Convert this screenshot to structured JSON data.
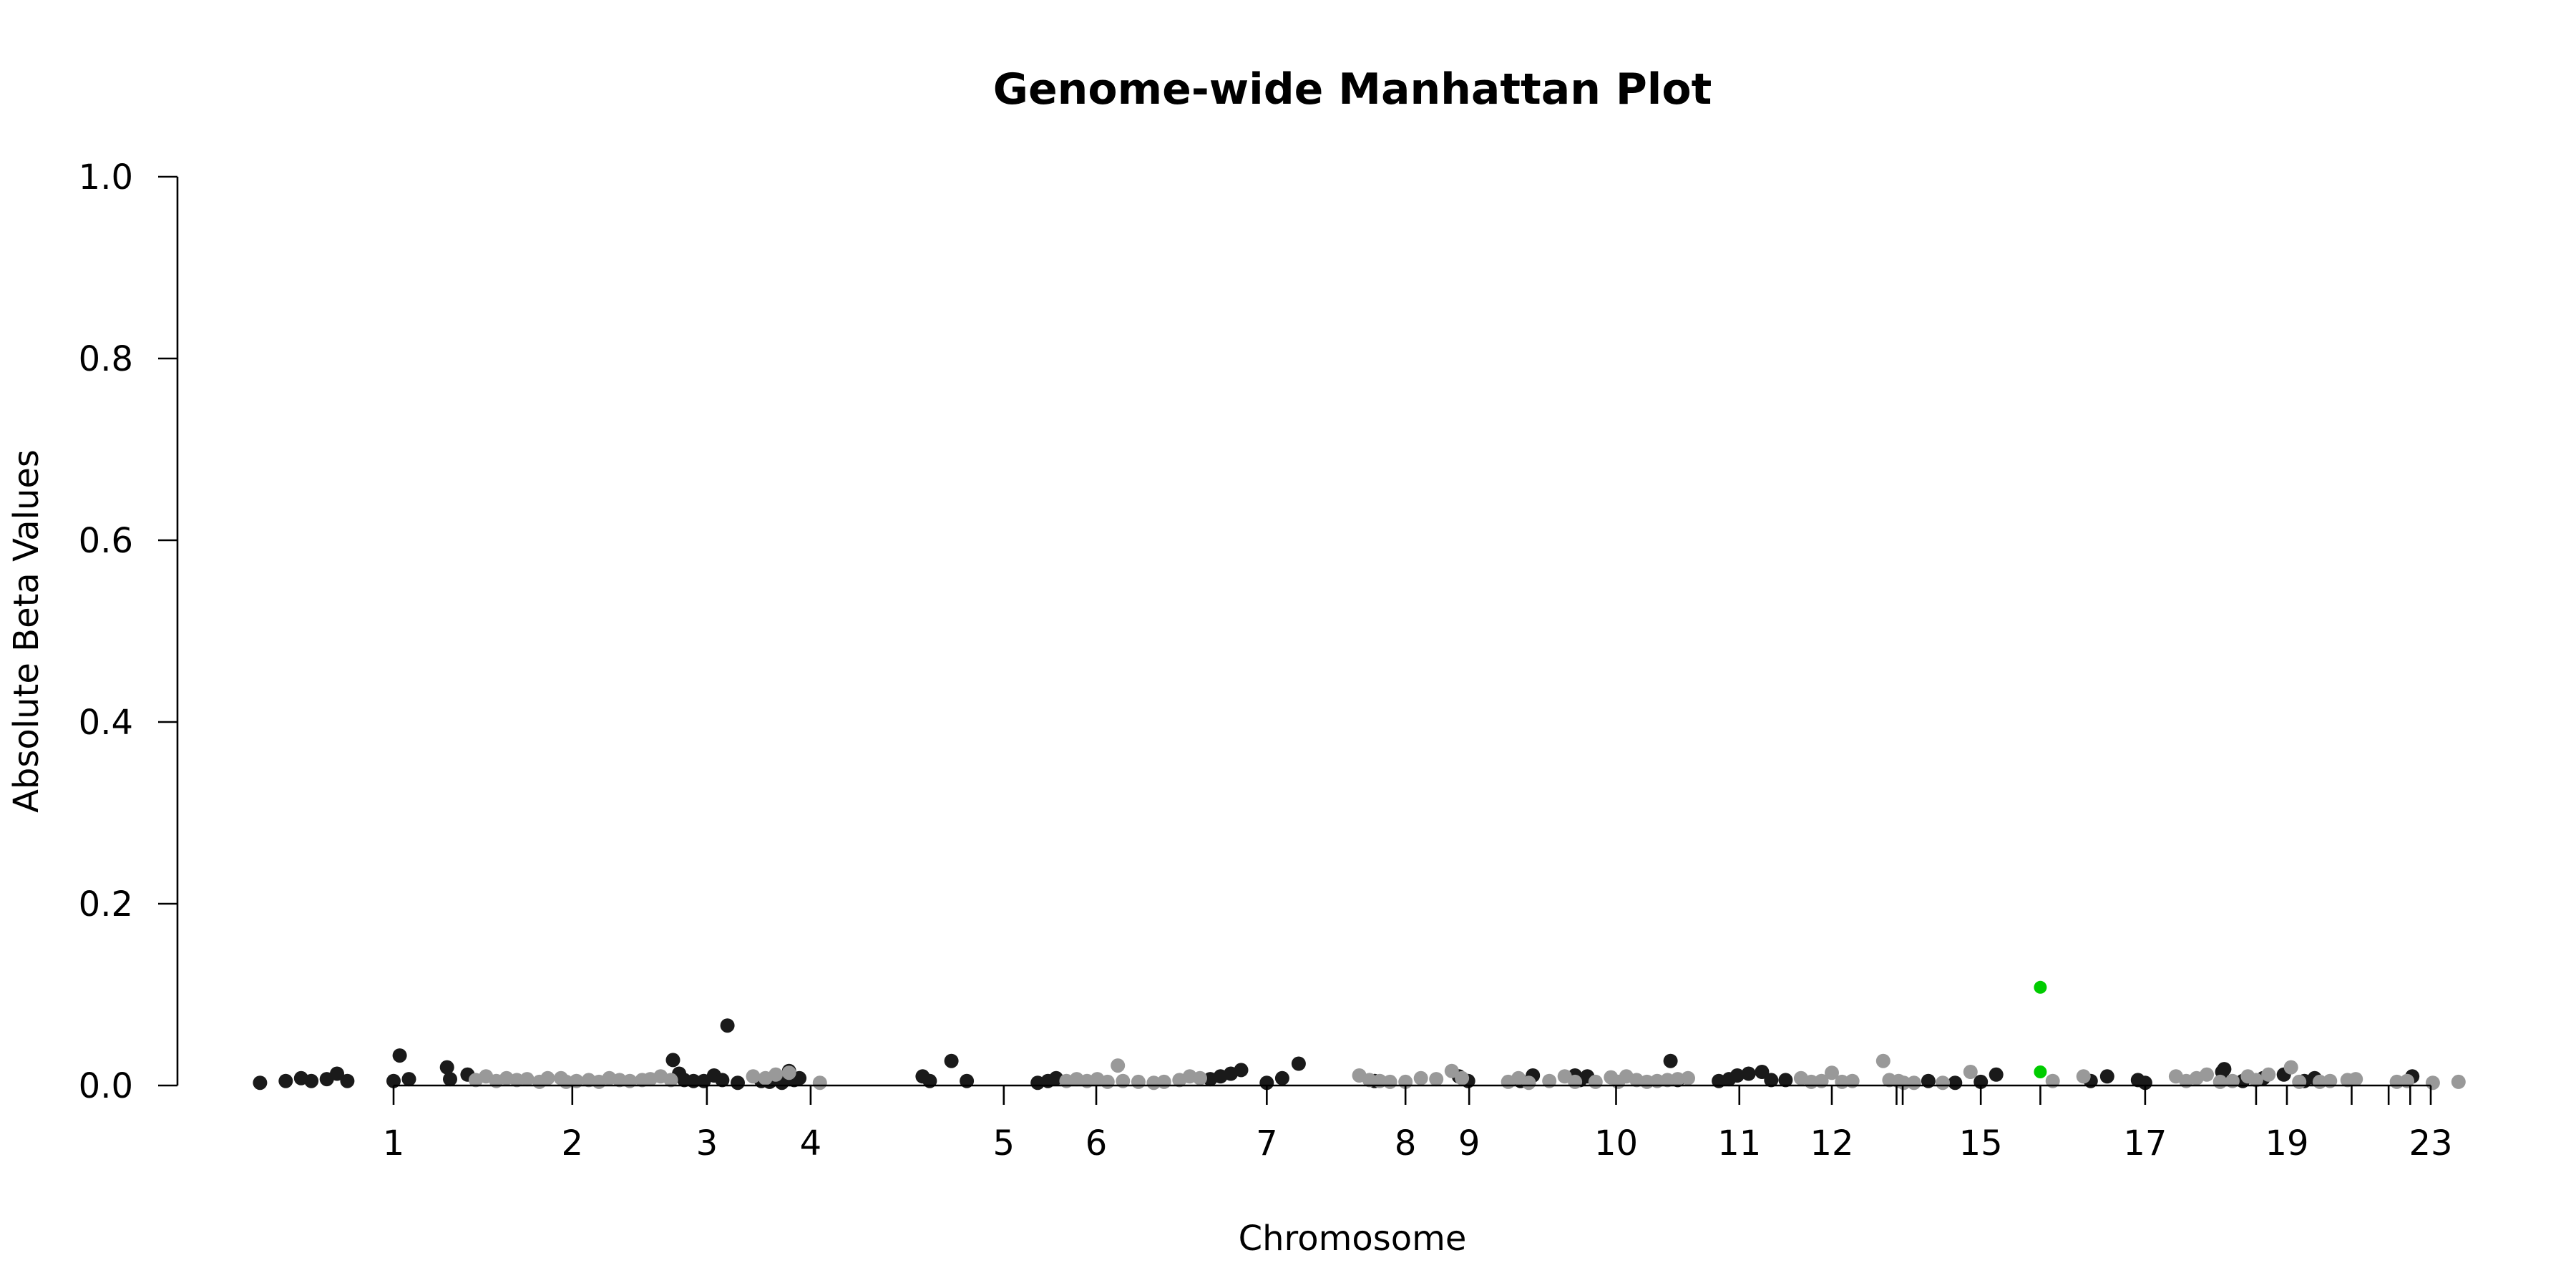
{
  "chart_data": {
    "type": "scatter",
    "title": "Genome-wide Manhattan Plot",
    "xlabel": "Chromosome",
    "ylabel": "Absolute Beta Values",
    "xlim": [
      -1.5,
      22.6
    ],
    "ylim": [
      0,
      1.0
    ],
    "y_ticks": [
      0.0,
      0.2,
      0.4,
      0.6,
      0.8,
      1.0
    ],
    "y_tick_labels": [
      "0.0",
      "0.2",
      "0.4",
      "0.6",
      "0.8",
      "1.0"
    ],
    "x_ticks": [
      0,
      1.74,
      3.05,
      4.06,
      5.94,
      6.84,
      8.5,
      9.85,
      10.47,
      11.9,
      13.1,
      14.0,
      14.63,
      14.69,
      15.45,
      16.03,
      17.05,
      18.13,
      18.43,
      19.06,
      19.42,
      19.63,
      19.83
    ],
    "x_tick_labels": [
      "1",
      "2",
      "3",
      "4",
      "5",
      "6",
      "7",
      "8",
      "9",
      "10",
      "11",
      "12",
      "",
      "",
      "15",
      "",
      "17",
      "",
      "19",
      "",
      "",
      "",
      "23"
    ],
    "grid": false,
    "colors": {
      "dark": "#1a1a1a",
      "light": "#999999",
      "highlight": "#00cc00"
    },
    "series": [
      {
        "color_key": "dark",
        "points": [
          [
            -1.3,
            0.003
          ],
          [
            -1.05,
            0.005
          ],
          [
            -0.9,
            0.008
          ],
          [
            -0.8,
            0.005
          ],
          [
            -0.65,
            0.007
          ],
          [
            -0.55,
            0.013
          ],
          [
            -0.45,
            0.005
          ],
          [
            0.0,
            0.005
          ],
          [
            0.06,
            0.033
          ],
          [
            0.15,
            0.007
          ],
          [
            0.52,
            0.02
          ],
          [
            0.55,
            0.007
          ],
          [
            0.72,
            0.012
          ],
          [
            2.72,
            0.028
          ],
          [
            2.78,
            0.013
          ],
          [
            2.83,
            0.006
          ],
          [
            2.92,
            0.005
          ],
          [
            3.02,
            0.005
          ],
          [
            3.12,
            0.011
          ],
          [
            3.2,
            0.006
          ],
          [
            3.25,
            0.066
          ],
          [
            3.35,
            0.003
          ],
          [
            3.58,
            0.005
          ],
          [
            3.66,
            0.004
          ],
          [
            3.78,
            0.003
          ],
          [
            3.85,
            0.016
          ],
          [
            3.9,
            0.006
          ],
          [
            3.95,
            0.008
          ],
          [
            5.15,
            0.01
          ],
          [
            5.22,
            0.005
          ],
          [
            5.43,
            0.027
          ],
          [
            5.58,
            0.005
          ],
          [
            6.27,
            0.003
          ],
          [
            6.37,
            0.005
          ],
          [
            6.45,
            0.008
          ],
          [
            7.95,
            0.007
          ],
          [
            8.05,
            0.01
          ],
          [
            8.15,
            0.013
          ],
          [
            8.25,
            0.017
          ],
          [
            8.5,
            0.003
          ],
          [
            8.65,
            0.008
          ],
          [
            8.81,
            0.024
          ],
          [
            9.55,
            0.005
          ],
          [
            10.37,
            0.01
          ],
          [
            10.46,
            0.005
          ],
          [
            10.97,
            0.005
          ],
          [
            11.09,
            0.011
          ],
          [
            11.5,
            0.011
          ],
          [
            11.55,
            0.006
          ],
          [
            11.62,
            0.01
          ],
          [
            12.43,
            0.027
          ],
          [
            12.5,
            0.006
          ],
          [
            12.9,
            0.005
          ],
          [
            13.0,
            0.007
          ],
          [
            13.08,
            0.011
          ],
          [
            13.19,
            0.013
          ],
          [
            13.32,
            0.015
          ],
          [
            13.41,
            0.006
          ],
          [
            13.55,
            0.006
          ],
          [
            14.94,
            0.005
          ],
          [
            15.2,
            0.003
          ],
          [
            15.45,
            0.004
          ],
          [
            15.6,
            0.012
          ],
          [
            16.52,
            0.005
          ],
          [
            16.68,
            0.01
          ],
          [
            16.98,
            0.006
          ],
          [
            17.05,
            0.003
          ],
          [
            17.8,
            0.015
          ],
          [
            17.82,
            0.018
          ],
          [
            18.0,
            0.005
          ],
          [
            18.2,
            0.008
          ],
          [
            18.4,
            0.012
          ],
          [
            18.6,
            0.005
          ],
          [
            18.7,
            0.008
          ],
          [
            19.65,
            0.01
          ]
        ]
      },
      {
        "color_key": "light",
        "points": [
          [
            0.8,
            0.006
          ],
          [
            0.9,
            0.01
          ],
          [
            1.0,
            0.005
          ],
          [
            1.1,
            0.008
          ],
          [
            1.2,
            0.006
          ],
          [
            1.3,
            0.007
          ],
          [
            1.42,
            0.004
          ],
          [
            1.5,
            0.008
          ],
          [
            1.63,
            0.008
          ],
          [
            1.68,
            0.004
          ],
          [
            1.78,
            0.005
          ],
          [
            1.9,
            0.006
          ],
          [
            2.0,
            0.004
          ],
          [
            2.1,
            0.008
          ],
          [
            2.2,
            0.006
          ],
          [
            2.3,
            0.005
          ],
          [
            2.42,
            0.006
          ],
          [
            2.5,
            0.007
          ],
          [
            2.6,
            0.01
          ],
          [
            2.7,
            0.006
          ],
          [
            3.5,
            0.01
          ],
          [
            3.62,
            0.008
          ],
          [
            3.72,
            0.012
          ],
          [
            3.85,
            0.014
          ],
          [
            4.15,
            0.003
          ],
          [
            6.55,
            0.005
          ],
          [
            6.65,
            0.007
          ],
          [
            6.75,
            0.005
          ],
          [
            6.85,
            0.007
          ],
          [
            6.95,
            0.004
          ],
          [
            7.05,
            0.022
          ],
          [
            7.1,
            0.005
          ],
          [
            7.25,
            0.004
          ],
          [
            7.4,
            0.003
          ],
          [
            7.5,
            0.004
          ],
          [
            7.65,
            0.006
          ],
          [
            7.75,
            0.01
          ],
          [
            7.85,
            0.008
          ],
          [
            9.4,
            0.011
          ],
          [
            9.5,
            0.006
          ],
          [
            9.6,
            0.005
          ],
          [
            9.7,
            0.004
          ],
          [
            9.85,
            0.004
          ],
          [
            10.0,
            0.008
          ],
          [
            10.15,
            0.007
          ],
          [
            10.3,
            0.016
          ],
          [
            10.4,
            0.008
          ],
          [
            10.85,
            0.004
          ],
          [
            10.95,
            0.008
          ],
          [
            11.05,
            0.003
          ],
          [
            11.25,
            0.005
          ],
          [
            11.4,
            0.01
          ],
          [
            11.5,
            0.004
          ],
          [
            11.7,
            0.004
          ],
          [
            11.85,
            0.009
          ],
          [
            11.92,
            0.004
          ],
          [
            12.0,
            0.01
          ],
          [
            12.1,
            0.006
          ],
          [
            12.2,
            0.004
          ],
          [
            12.3,
            0.005
          ],
          [
            12.4,
            0.006
          ],
          [
            12.5,
            0.007
          ],
          [
            12.6,
            0.008
          ],
          [
            13.7,
            0.008
          ],
          [
            13.8,
            0.004
          ],
          [
            13.9,
            0.005
          ],
          [
            14.0,
            0.014
          ],
          [
            14.1,
            0.004
          ],
          [
            14.2,
            0.005
          ],
          [
            14.5,
            0.027
          ],
          [
            14.56,
            0.006
          ],
          [
            14.65,
            0.005
          ],
          [
            14.7,
            0.003
          ],
          [
            14.8,
            0.003
          ],
          [
            15.08,
            0.003
          ],
          [
            15.35,
            0.015
          ],
          [
            16.15,
            0.005
          ],
          [
            16.45,
            0.01
          ],
          [
            17.35,
            0.01
          ],
          [
            17.45,
            0.005
          ],
          [
            17.55,
            0.008
          ],
          [
            17.65,
            0.012
          ],
          [
            17.78,
            0.004
          ],
          [
            17.9,
            0.005
          ],
          [
            18.05,
            0.01
          ],
          [
            18.13,
            0.006
          ],
          [
            18.25,
            0.012
          ],
          [
            18.47,
            0.02
          ],
          [
            18.55,
            0.004
          ],
          [
            18.75,
            0.004
          ],
          [
            18.85,
            0.005
          ],
          [
            19.02,
            0.006
          ],
          [
            19.1,
            0.007
          ],
          [
            19.5,
            0.004
          ],
          [
            19.6,
            0.005
          ],
          [
            19.85,
            0.003
          ],
          [
            20.1,
            0.004
          ]
        ]
      },
      {
        "color_key": "highlight",
        "points": [
          [
            16.03,
            0.108
          ],
          [
            16.03,
            0.015
          ]
        ]
      }
    ]
  }
}
